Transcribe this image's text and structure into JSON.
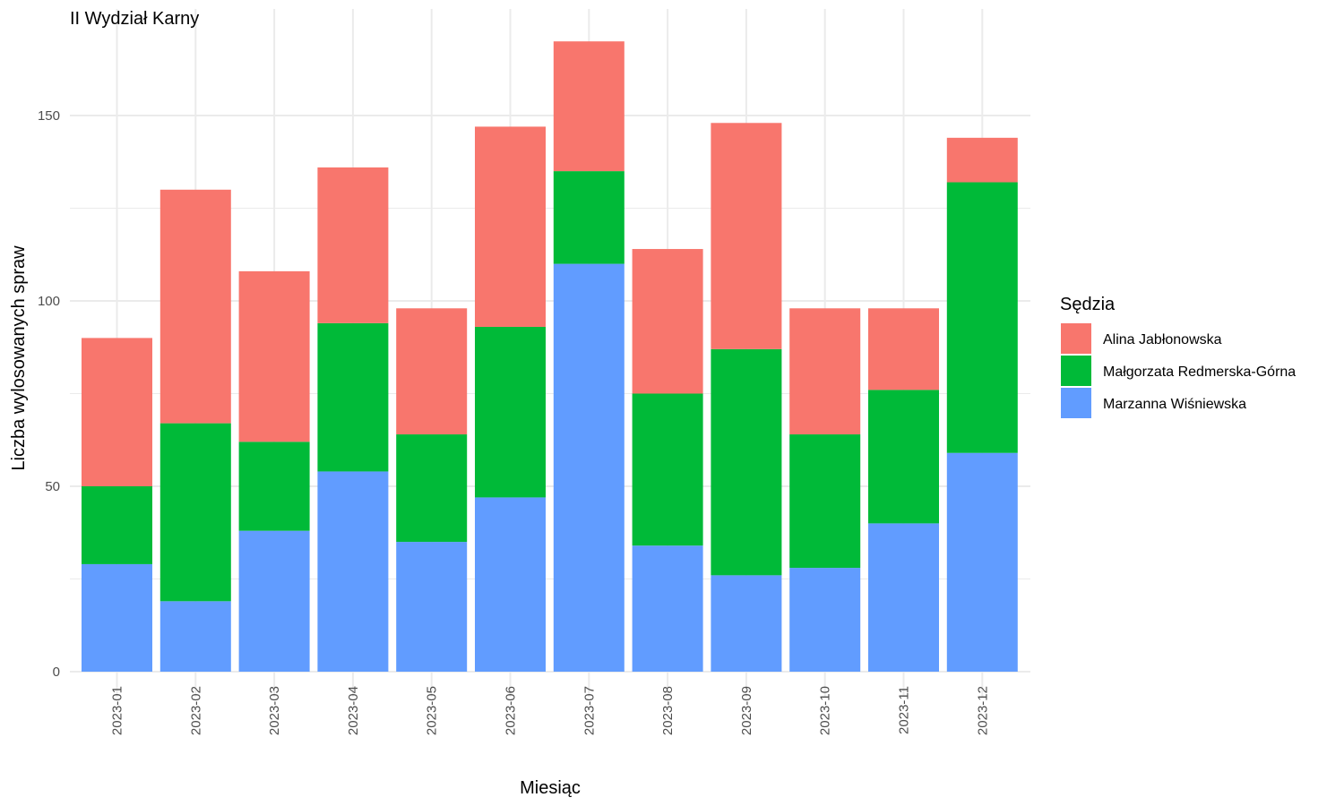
{
  "chart_data": {
    "type": "bar",
    "stacked": true,
    "title": "II Wydział Karny",
    "xlabel": "Miesiąc",
    "ylabel": "Liczba wylosowanych spraw",
    "categories": [
      "2023-01",
      "2023-02",
      "2023-03",
      "2023-04",
      "2023-05",
      "2023-06",
      "2023-07",
      "2023-08",
      "2023-09",
      "2023-10",
      "2023-11",
      "2023-12"
    ],
    "series": [
      {
        "name": "Marzanna Wiśniewska",
        "color": "#619CFF",
        "values": [
          29,
          19,
          38,
          54,
          35,
          47,
          110,
          34,
          26,
          28,
          40,
          59
        ]
      },
      {
        "name": "Małgorzata Redmerska-Górna",
        "color": "#00BA38",
        "values": [
          21,
          48,
          24,
          40,
          29,
          46,
          25,
          41,
          61,
          36,
          36,
          73
        ]
      },
      {
        "name": "Alina Jabłonowska",
        "color": "#F8766D",
        "values": [
          40,
          63,
          46,
          42,
          34,
          54,
          35,
          39,
          61,
          34,
          22,
          12
        ]
      }
    ],
    "ylim": [
      0,
      170
    ],
    "yticks": [
      0,
      50,
      100,
      150
    ],
    "grid": true,
    "legend": {
      "title": "Sędzia",
      "position": "right",
      "order": [
        "Alina Jabłonowska",
        "Małgorzata Redmerska-Górna",
        "Marzanna Wiśniewska"
      ]
    }
  }
}
